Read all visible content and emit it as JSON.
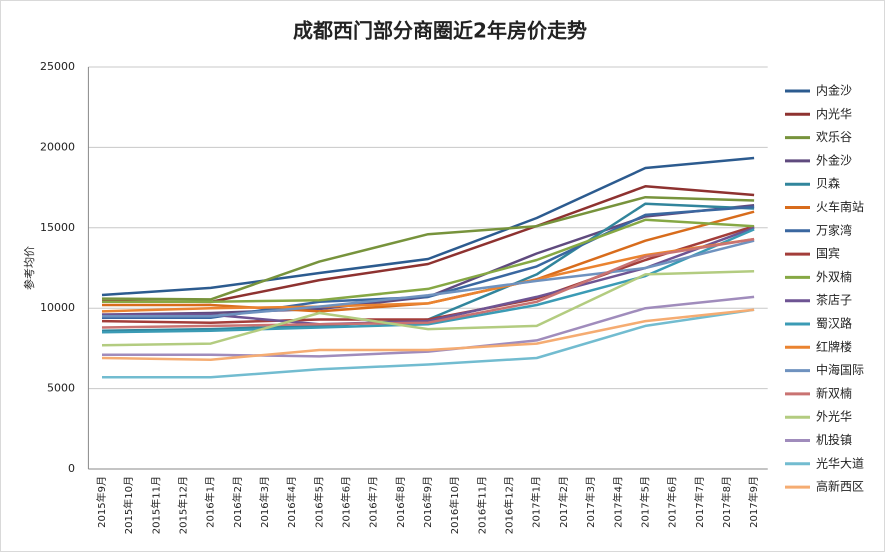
{
  "chart_data": {
    "type": "line",
    "title": "成都西门部分商圈近2年房价走势",
    "y_label": "参考均价",
    "categories": [
      "2015年9月",
      "2015年10月",
      "2015年11月",
      "2015年12月",
      "2016年1月",
      "2016年2月",
      "2016年3月",
      "2016年4月",
      "2016年5月",
      "2016年6月",
      "2016年7月",
      "2016年8月",
      "2016年9月",
      "2016年10月",
      "2016年11月",
      "2016年12月",
      "2017年1月",
      "2017年2月",
      "2017年3月",
      "2017年4月",
      "2017年5月",
      "2017年6月",
      "2017年7月",
      "2017年8月",
      "2017年9月"
    ],
    "x": [
      "2015年9月",
      "2016年1月",
      "2016年5月",
      "2016年9月",
      "2017年1月",
      "2017年5月",
      "2017年9月"
    ],
    "ylim": [
      0,
      25000
    ],
    "yticks": [
      0,
      5000,
      10000,
      15000,
      20000,
      25000
    ],
    "grid": true,
    "legend": "right",
    "series": [
      {
        "name": "内金沙",
        "color": "#2c5b8f",
        "values": [
          10820,
          11260,
          12190,
          13060,
          15610,
          18720,
          19340
        ]
      },
      {
        "name": "内光华",
        "color": "#8e3230",
        "values": [
          10450,
          10390,
          11750,
          12750,
          15110,
          17580,
          17040
        ]
      },
      {
        "name": "欢乐谷",
        "color": "#77933c",
        "values": [
          10600,
          10550,
          12900,
          14600,
          15100,
          16900,
          16700
        ]
      },
      {
        "name": "外金沙",
        "color": "#5f4a7e",
        "values": [
          9600,
          9700,
          9950,
          10700,
          13400,
          15700,
          16400
        ]
      },
      {
        "name": "贝森",
        "color": "#31859c",
        "values": [
          8600,
          8700,
          8900,
          9300,
          12100,
          16500,
          16200
        ]
      },
      {
        "name": "火车南站",
        "color": "#d86c1c",
        "values": [
          10200,
          10200,
          9800,
          10300,
          11800,
          14200,
          16000
        ]
      },
      {
        "name": "万家湾",
        "color": "#3a67a0",
        "values": [
          9400,
          9400,
          10400,
          10700,
          12600,
          15800,
          16300
        ]
      },
      {
        "name": "国宾",
        "color": "#a33d3a",
        "values": [
          9200,
          9100,
          9300,
          9300,
          10600,
          13000,
          15100
        ]
      },
      {
        "name": "外双楠",
        "color": "#86a844",
        "values": [
          10400,
          10400,
          10500,
          11200,
          13000,
          15500,
          15100
        ]
      },
      {
        "name": "茶店子",
        "color": "#6e5493",
        "values": [
          9600,
          9600,
          9000,
          9200,
          10700,
          12500,
          15000
        ]
      },
      {
        "name": "蜀汉路",
        "color": "#3b9bb5",
        "values": [
          8500,
          8600,
          8800,
          9000,
          10200,
          12000,
          14900
        ]
      },
      {
        "name": "红牌楼",
        "color": "#ea8330",
        "values": [
          9800,
          10000,
          10100,
          10300,
          11800,
          13300,
          14300
        ]
      },
      {
        "name": "中海国际",
        "color": "#6f92bf",
        "values": [
          9500,
          9500,
          10100,
          10800,
          11700,
          12500,
          14200
        ]
      },
      {
        "name": "新双楠",
        "color": "#c97372",
        "values": [
          8800,
          8900,
          9000,
          9100,
          10400,
          13200,
          14300
        ]
      },
      {
        "name": "外光华",
        "color": "#b3cc80",
        "values": [
          7700,
          7800,
          9700,
          8700,
          8900,
          12100,
          12300
        ]
      },
      {
        "name": "机投镇",
        "color": "#a08cbc",
        "values": [
          7100,
          7100,
          7000,
          7300,
          8000,
          10000,
          10700
        ]
      },
      {
        "name": "光华大道",
        "color": "#72bcd0",
        "values": [
          5700,
          5700,
          6200,
          6500,
          6900,
          8900,
          9900
        ]
      },
      {
        "name": "高新西区",
        "color": "#f5ac72",
        "values": [
          6900,
          6800,
          7400,
          7400,
          7800,
          9200,
          9900
        ]
      }
    ]
  }
}
